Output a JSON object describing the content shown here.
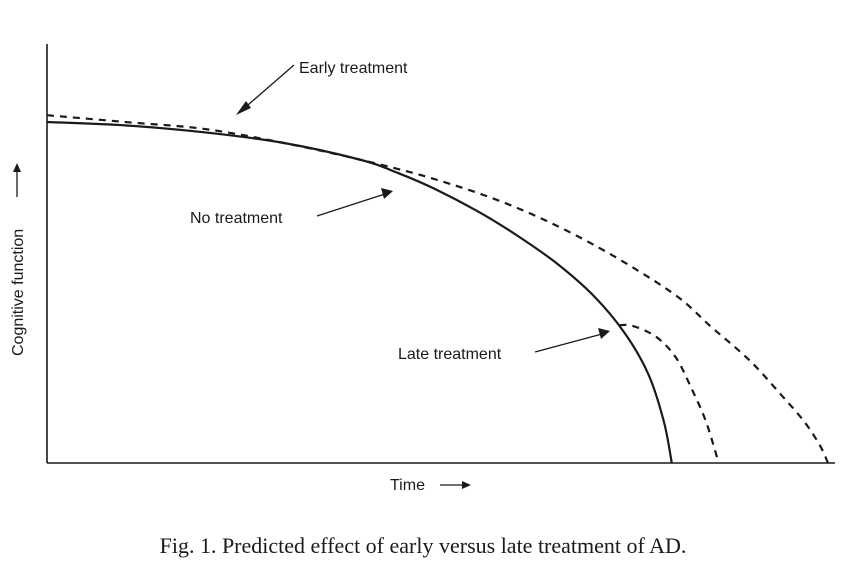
{
  "chart_data": {
    "type": "line",
    "xlabel": "Time",
    "ylabel": "Cognitive function",
    "xlim": [
      0,
      100
    ],
    "ylim": [
      0,
      100
    ],
    "grid": false,
    "legend": "none",
    "series": [
      {
        "name": "No treatment",
        "style": "solid",
        "x": [
          0,
          10,
          20,
          30,
          40,
          45,
          50,
          55,
          60,
          65,
          70,
          74,
          77,
          79,
          80
        ],
        "y": [
          100,
          99,
          97,
          94,
          89,
          85,
          80,
          74,
          67,
          59,
          49,
          38,
          26,
          12,
          0
        ]
      },
      {
        "name": "Early treatment",
        "style": "dashed",
        "x": [
          0,
          10,
          20,
          30,
          40,
          50,
          60,
          70,
          80,
          85,
          90,
          94,
          97,
          99,
          100
        ],
        "y": [
          102,
          100,
          98,
          94,
          89,
          83,
          75,
          64,
          50,
          40,
          30,
          20,
          12,
          5,
          0
        ]
      },
      {
        "name": "Late treatment",
        "style": "dashed",
        "x": [
          73.3,
          75,
          78,
          80.5,
          82.5,
          84.4,
          86
        ],
        "y": [
          40.4,
          40.2,
          37,
          31,
          22,
          12,
          0
        ]
      }
    ],
    "annotations": [
      {
        "text": "Early treatment",
        "points_to_series": "Early treatment"
      },
      {
        "text": "No treatment",
        "points_to_series": "No treatment"
      },
      {
        "text": "Late treatment",
        "points_to_series": "Late treatment"
      }
    ]
  },
  "labels": {
    "xlabel": "Time",
    "ylabel": "Cognitive function",
    "early": "Early treatment",
    "none": "No treatment",
    "late": "Late treatment"
  },
  "caption": "Fig. 1.  Predicted effect of early versus late treatment of AD."
}
